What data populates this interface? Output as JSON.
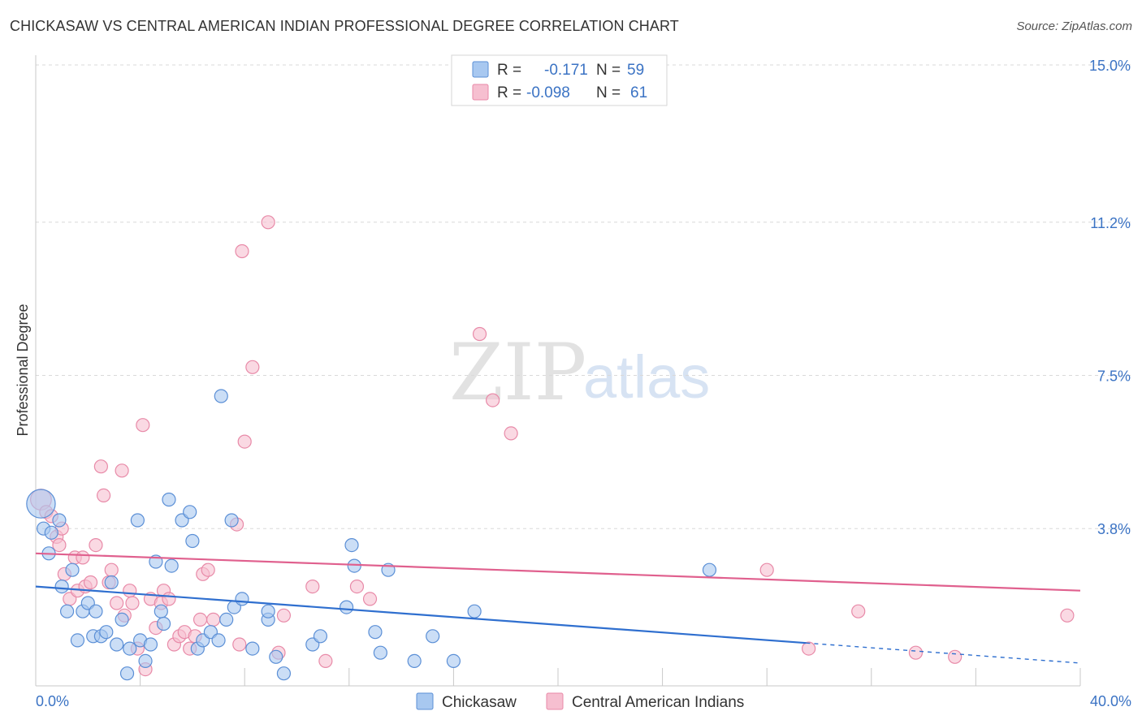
{
  "title": "CHICKASAW VS CENTRAL AMERICAN INDIAN PROFESSIONAL DEGREE CORRELATION CHART",
  "source": "Source: ZipAtlas.com",
  "watermark": {
    "zip": "ZIP",
    "atlas": "atlas"
  },
  "legend": {
    "rows": [
      {
        "r_label": "R =",
        "r_value": "-0.171",
        "n_label": "N =",
        "n_value": "59"
      },
      {
        "r_label": "R =",
        "r_value": "-0.098",
        "n_label": "N =",
        "n_value": "61"
      }
    ]
  },
  "colors": {
    "blue_fill": "#a8c8f0",
    "blue_stroke": "#5b8fd6",
    "blue_line": "#2f6fcf",
    "pink_fill": "#f6bfd0",
    "pink_stroke": "#e88aa8",
    "pink_line": "#e0608e",
    "grid": "#d9d9d9",
    "axis_text": "#3b73c4"
  },
  "chart_data": {
    "type": "scatter",
    "title": "CHICKASAW VS CENTRAL AMERICAN INDIAN PROFESSIONAL DEGREE CORRELATION CHART",
    "xlabel": "",
    "ylabel": "Professional Degree",
    "xlim": [
      0,
      40
    ],
    "ylim": [
      0,
      15.5
    ],
    "x_tick_labels": [
      "0.0%",
      "40.0%"
    ],
    "y_ticks": [
      3.8,
      7.5,
      11.2,
      15.0
    ],
    "y_tick_labels": [
      "3.8%",
      "7.5%",
      "11.2%",
      "15.0%"
    ],
    "grid": true,
    "legend_position": "top-center",
    "series": [
      {
        "name": "Chickasaw",
        "r": -0.171,
        "n": 59,
        "trend": {
          "x0": 0,
          "y0": 2.4,
          "x1": 40,
          "y1": 0.55,
          "solid_until": 29.5
        },
        "points": [
          [
            0.2,
            4.4,
            2.2
          ],
          [
            0.3,
            3.8,
            1
          ],
          [
            0.5,
            3.2,
            1
          ],
          [
            0.6,
            3.7,
            1
          ],
          [
            0.9,
            4.0,
            1
          ],
          [
            1.0,
            2.4,
            1
          ],
          [
            1.2,
            1.8,
            1
          ],
          [
            1.4,
            2.8,
            1
          ],
          [
            1.6,
            1.1,
            1
          ],
          [
            1.8,
            1.8,
            1
          ],
          [
            2.0,
            2.0,
            1
          ],
          [
            2.2,
            1.2,
            1
          ],
          [
            2.3,
            1.8,
            1
          ],
          [
            2.5,
            1.2,
            1
          ],
          [
            2.7,
            1.3,
            1
          ],
          [
            2.9,
            2.5,
            1
          ],
          [
            3.1,
            1.0,
            1
          ],
          [
            3.3,
            1.6,
            1
          ],
          [
            3.5,
            0.3,
            1
          ],
          [
            3.6,
            0.9,
            1
          ],
          [
            3.9,
            4.0,
            1
          ],
          [
            4.0,
            1.1,
            1
          ],
          [
            4.2,
            0.6,
            1
          ],
          [
            4.4,
            1.0,
            1
          ],
          [
            4.6,
            3.0,
            1
          ],
          [
            4.8,
            1.8,
            1
          ],
          [
            4.9,
            1.5,
            1
          ],
          [
            5.1,
            4.5,
            1
          ],
          [
            5.2,
            2.9,
            1
          ],
          [
            5.6,
            4.0,
            1
          ],
          [
            5.9,
            4.2,
            1
          ],
          [
            6.0,
            3.5,
            1
          ],
          [
            6.2,
            0.9,
            1
          ],
          [
            6.4,
            1.1,
            1
          ],
          [
            6.7,
            1.3,
            1
          ],
          [
            7.0,
            1.1,
            1
          ],
          [
            7.1,
            7.0,
            1
          ],
          [
            7.3,
            1.6,
            1
          ],
          [
            7.5,
            4.0,
            1
          ],
          [
            7.6,
            1.9,
            1
          ],
          [
            7.9,
            2.1,
            1
          ],
          [
            8.3,
            0.9,
            1
          ],
          [
            8.9,
            1.6,
            1
          ],
          [
            8.9,
            1.8,
            1
          ],
          [
            9.2,
            0.7,
            1
          ],
          [
            9.5,
            0.3,
            1
          ],
          [
            10.6,
            1.0,
            1
          ],
          [
            10.9,
            1.2,
            1
          ],
          [
            11.9,
            1.9,
            1
          ],
          [
            12.1,
            3.4,
            1
          ],
          [
            12.2,
            2.9,
            1
          ],
          [
            13.0,
            1.3,
            1
          ],
          [
            13.2,
            0.8,
            1
          ],
          [
            13.5,
            2.8,
            1
          ],
          [
            14.5,
            0.6,
            1
          ],
          [
            15.2,
            1.2,
            1
          ],
          [
            16.0,
            0.6,
            1
          ],
          [
            16.8,
            1.8,
            1
          ],
          [
            25.8,
            2.8,
            1
          ]
        ]
      },
      {
        "name": "Central American Indians",
        "r": -0.098,
        "n": 61,
        "trend": {
          "x0": 0,
          "y0": 3.2,
          "x1": 40,
          "y1": 2.3,
          "solid_until": 40
        },
        "points": [
          [
            0.2,
            4.5,
            1.6
          ],
          [
            0.4,
            4.2,
            1
          ],
          [
            0.6,
            4.1,
            1
          ],
          [
            0.8,
            3.6,
            1
          ],
          [
            0.9,
            3.4,
            1
          ],
          [
            1.0,
            3.8,
            1
          ],
          [
            1.1,
            2.7,
            1
          ],
          [
            1.3,
            2.1,
            1
          ],
          [
            1.5,
            3.1,
            1
          ],
          [
            1.6,
            2.3,
            1
          ],
          [
            1.8,
            3.1,
            1
          ],
          [
            1.9,
            2.4,
            1
          ],
          [
            2.1,
            2.5,
            1
          ],
          [
            2.3,
            3.4,
            1
          ],
          [
            2.5,
            5.3,
            1
          ],
          [
            2.6,
            4.6,
            1
          ],
          [
            2.8,
            2.5,
            1
          ],
          [
            2.9,
            2.8,
            1
          ],
          [
            3.1,
            2.0,
            1
          ],
          [
            3.3,
            5.2,
            1
          ],
          [
            3.4,
            1.7,
            1
          ],
          [
            3.6,
            2.3,
            1
          ],
          [
            3.7,
            2.0,
            1
          ],
          [
            3.9,
            0.9,
            1
          ],
          [
            4.1,
            6.3,
            1
          ],
          [
            4.2,
            0.4,
            1
          ],
          [
            4.4,
            2.1,
            1
          ],
          [
            4.6,
            1.4,
            1
          ],
          [
            4.8,
            2.0,
            1
          ],
          [
            4.9,
            2.3,
            1
          ],
          [
            5.1,
            2.1,
            1
          ],
          [
            5.3,
            1.0,
            1
          ],
          [
            5.5,
            1.2,
            1
          ],
          [
            5.7,
            1.3,
            1
          ],
          [
            5.9,
            0.9,
            1
          ],
          [
            6.1,
            1.2,
            1
          ],
          [
            6.3,
            1.6,
            1
          ],
          [
            6.4,
            2.7,
            1
          ],
          [
            6.6,
            2.8,
            1
          ],
          [
            6.8,
            1.6,
            1
          ],
          [
            7.7,
            3.9,
            1
          ],
          [
            7.8,
            1.0,
            1
          ],
          [
            7.9,
            10.5,
            1
          ],
          [
            8.0,
            5.9,
            1
          ],
          [
            8.3,
            7.7,
            1
          ],
          [
            8.9,
            11.2,
            1
          ],
          [
            9.3,
            0.8,
            1
          ],
          [
            9.5,
            1.7,
            1
          ],
          [
            10.6,
            2.4,
            1
          ],
          [
            11.1,
            0.6,
            1
          ],
          [
            12.3,
            2.4,
            1
          ],
          [
            12.8,
            2.1,
            1
          ],
          [
            17.0,
            8.5,
            1
          ],
          [
            17.5,
            6.9,
            1
          ],
          [
            18.2,
            6.1,
            1
          ],
          [
            28.0,
            2.8,
            1
          ],
          [
            29.6,
            0.9,
            1
          ],
          [
            31.5,
            1.8,
            1
          ],
          [
            33.7,
            0.8,
            1
          ],
          [
            35.2,
            0.7,
            1
          ],
          [
            39.5,
            1.7,
            1
          ]
        ]
      }
    ]
  },
  "bottom_legend": {
    "items": [
      {
        "label": "Chickasaw"
      },
      {
        "label": "Central American Indians"
      }
    ]
  }
}
